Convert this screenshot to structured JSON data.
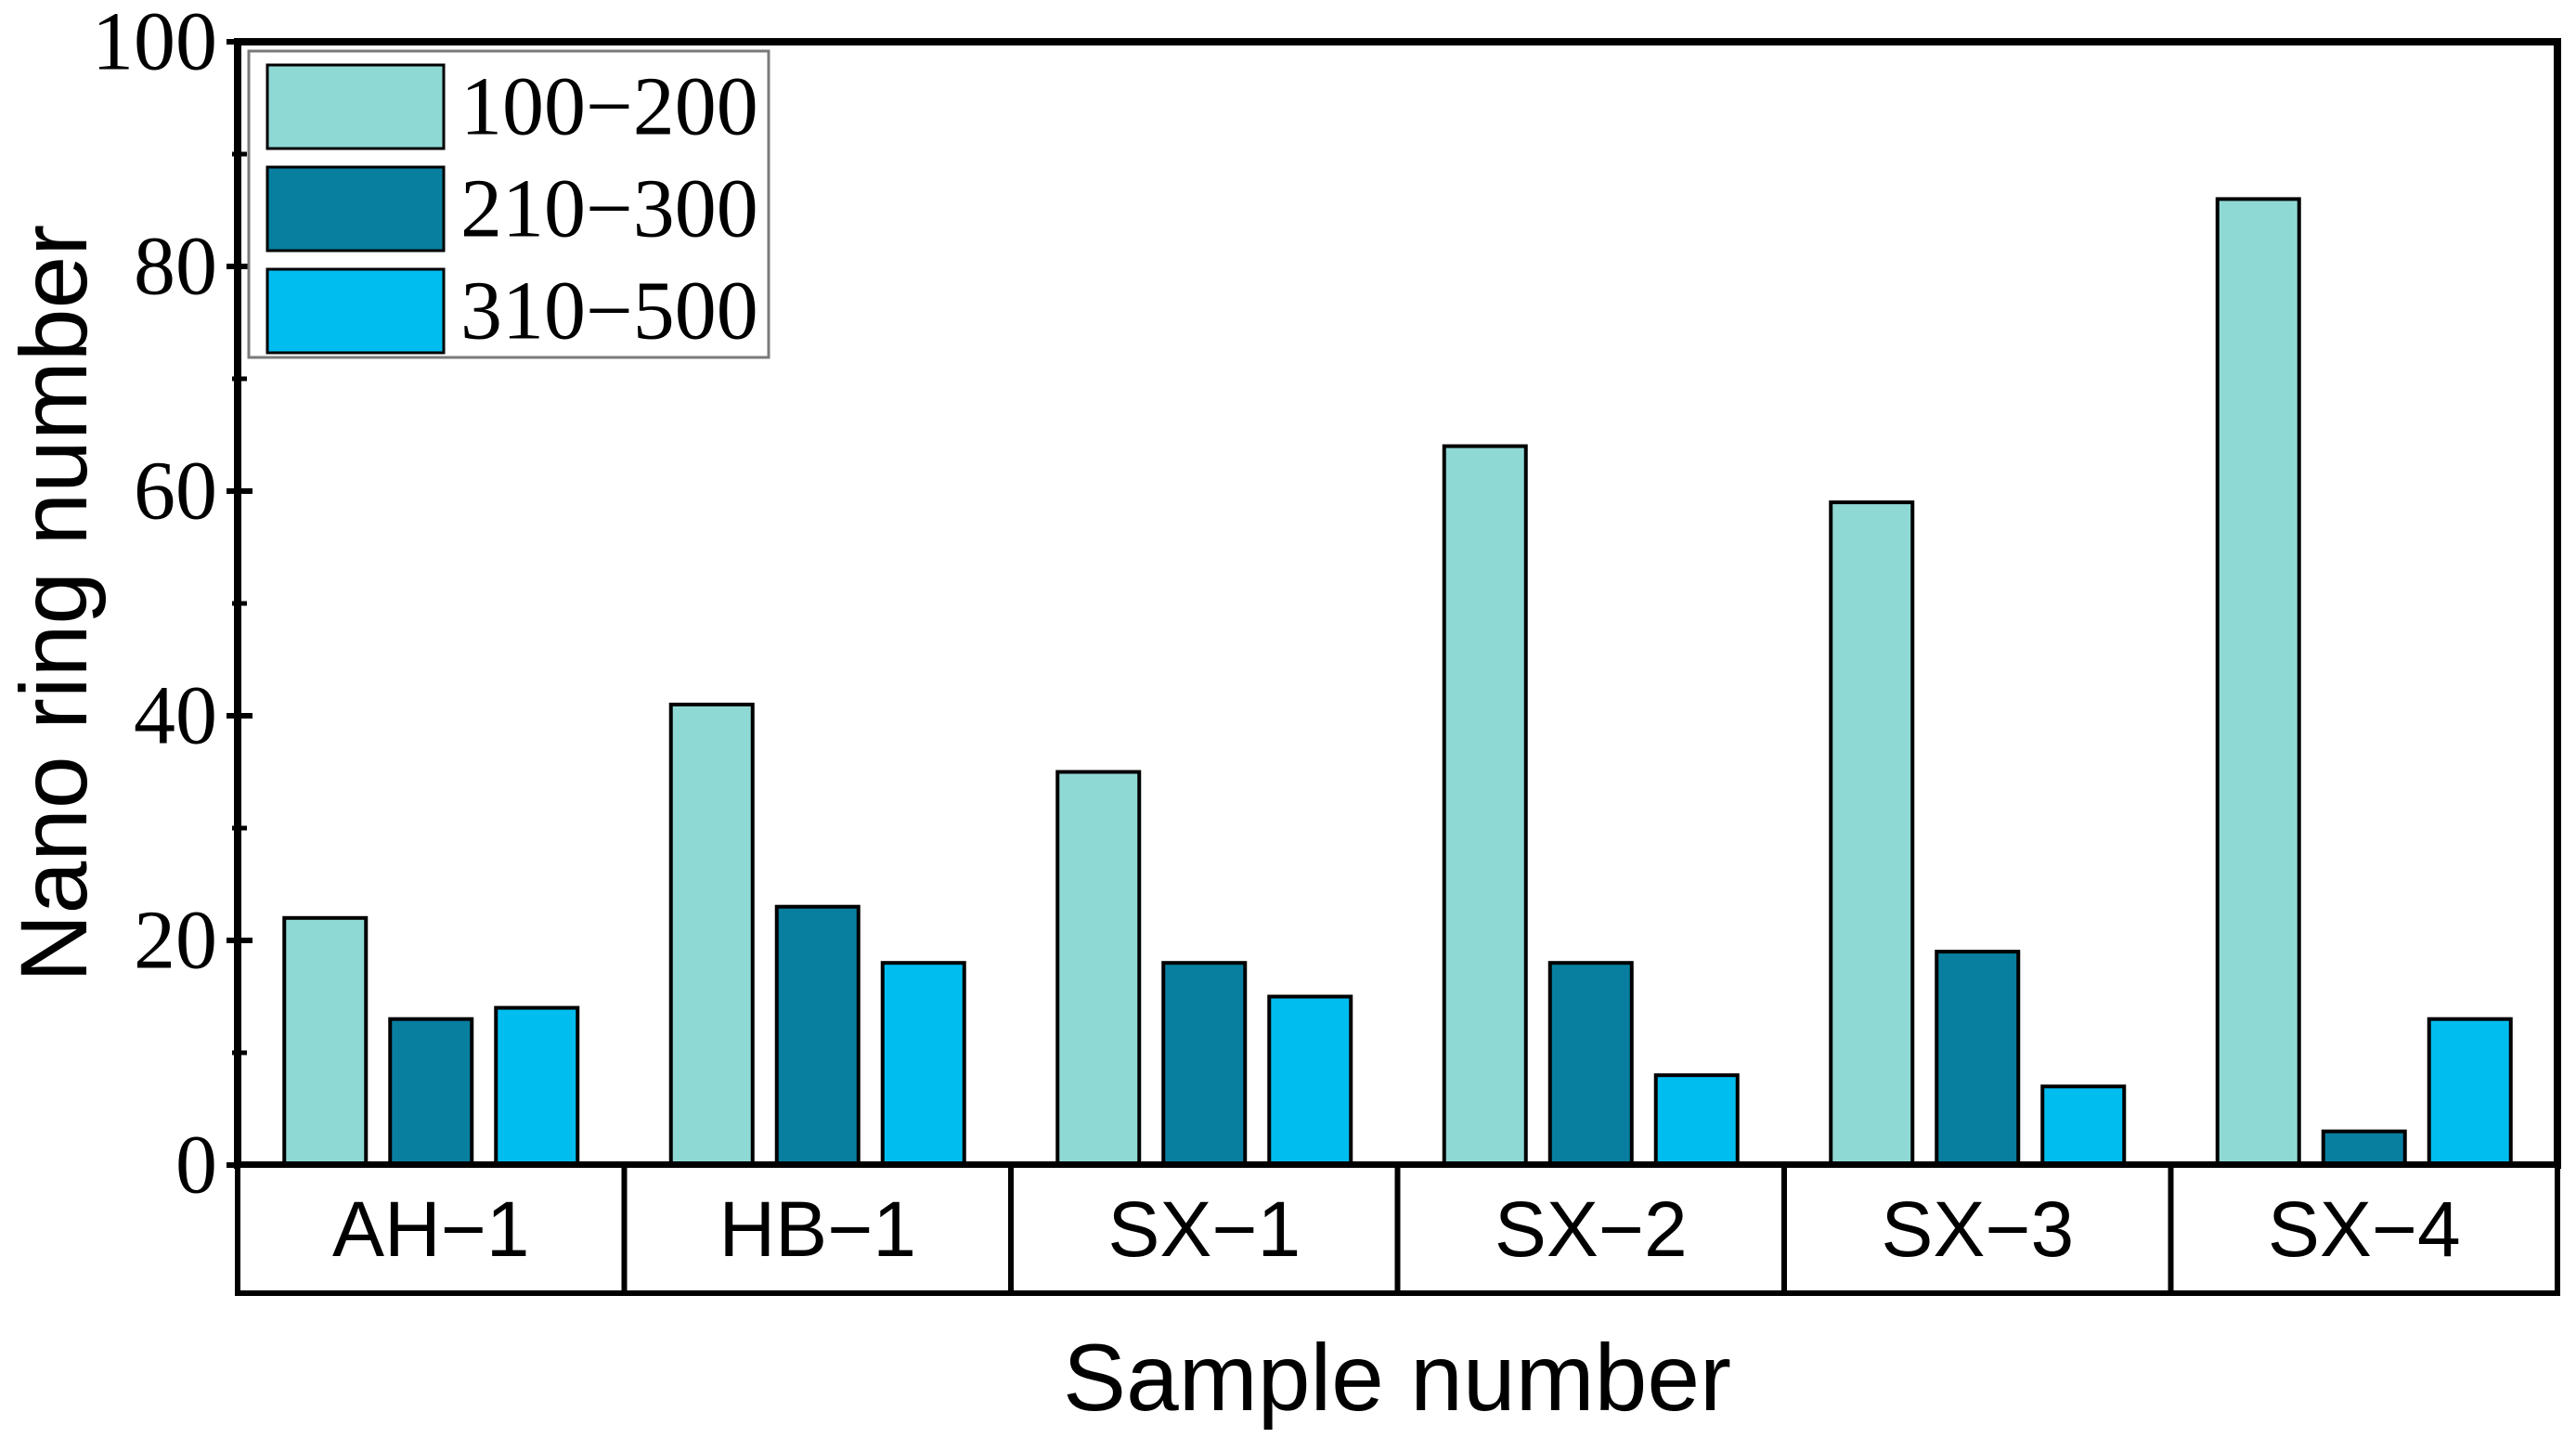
{
  "chart_data": {
    "type": "bar",
    "title": "",
    "xlabel": "Sample number",
    "ylabel": "Nano ring number",
    "categories": [
      "AH−1",
      "HB−1",
      "SX−1",
      "SX−2",
      "SX−3",
      "SX−4"
    ],
    "series": [
      {
        "name": "100−200",
        "color": "#8fd9d5",
        "values": [
          22,
          41,
          35,
          64,
          59,
          86
        ]
      },
      {
        "name": "210−300",
        "color": "#087f9f",
        "values": [
          13,
          23,
          18,
          18,
          19,
          3
        ]
      },
      {
        "name": "310−500",
        "color": "#00bdf0",
        "values": [
          14,
          18,
          15,
          8,
          7,
          13
        ]
      }
    ],
    "ylim": [
      0,
      100
    ],
    "yticks_major": [
      0,
      20,
      40,
      60,
      80,
      100
    ],
    "yticks_minor": [
      10,
      30,
      50,
      70,
      90
    ],
    "legend_position": "top-left",
    "grid": false,
    "bar_outline_color": "#000000",
    "axis_color": "#000000",
    "legend_border_color": "#7a7a7a"
  }
}
